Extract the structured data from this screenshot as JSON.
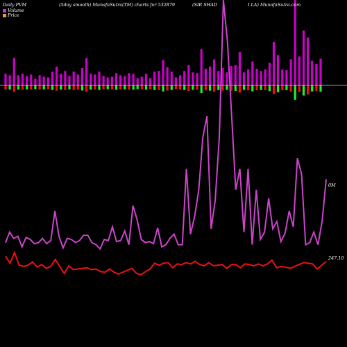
{
  "header": {
    "left": "Daily PVM",
    "mid": "(5day smooth) MunafaSutra(TM) charts for 532879",
    "right1": "(SIR SHAD",
    "right2": "I LA) MunafaSutra.com"
  },
  "legend": [
    {
      "label": "Volume",
      "color": "#cc33cc"
    },
    {
      "label": "Price",
      "color": "#e8a020"
    }
  ],
  "end_labels": {
    "volume": "0M",
    "price": "247.10"
  },
  "colors": {
    "background": "#000000",
    "volume_bar": "#cc00cc",
    "down": "#ee1111",
    "up": "#22ee22",
    "volume_line": "#cc44cc",
    "price_line": "#ee1111",
    "baseline": "#cccccc"
  },
  "chart_data": {
    "type": "bar+line",
    "volume_bar_height_index": [
      -1.6,
      -1.4,
      -3.8,
      -1.4,
      -1.6,
      -1.3,
      -1.5,
      -0.9,
      -1.4,
      -1.2,
      -1.1,
      -1.9,
      -2.6,
      -1.6,
      -2.0,
      -1.3,
      -1.9,
      -1.5,
      -2.4,
      -3.8,
      -1.6,
      -1.5,
      -1.9,
      -1.3,
      -1.1,
      -1.2,
      -1.7,
      -1.4,
      -1.3,
      -1.7,
      -1.6,
      -1.0,
      -1.2,
      -1.6,
      -1.0,
      -1.9,
      -2.0,
      -3.5,
      -2.5,
      -1.9,
      -1.1,
      -1.4,
      -2.0,
      -2.8,
      -1.8,
      -1.7,
      -5.0,
      -2.3,
      -2.6,
      -3.6,
      -2.0,
      -2.4,
      -1.8,
      -2.7,
      -2.8,
      -4.6,
      -1.8,
      -2.2,
      -3.3,
      -2.3,
      -2.0,
      -2.2,
      -3.1,
      -6.0,
      -4.2,
      -2.2,
      -2.1,
      -3.6,
      -12.0,
      -4.0,
      -7.6,
      -6.6,
      -3.4,
      -3.0,
      -3.7
    ],
    "volume_bar_type": [
      "red",
      "green",
      "red",
      "green",
      "red",
      "green",
      "red",
      "green",
      "red",
      "green",
      "red",
      "green",
      "red",
      "green",
      "red",
      "green",
      "red",
      "red",
      "green",
      "red",
      "green",
      "red",
      "green",
      "red",
      "green",
      "red",
      "green",
      "red",
      "green",
      "red",
      "green",
      "green",
      "red",
      "green",
      "red",
      "green",
      "red",
      "green",
      "red",
      "green",
      "red",
      "red",
      "green",
      "red",
      "green",
      "red",
      "green",
      "red",
      "green",
      "red",
      "green",
      "red",
      "green",
      "red",
      "green",
      "red",
      "green",
      "red",
      "green",
      "red",
      "green",
      "red",
      "green",
      "red",
      "green",
      "red",
      "green",
      "red",
      "green",
      "red",
      "green",
      "red",
      "green",
      "red",
      "green"
    ],
    "volume_line": [
      2.0,
      3.0,
      2.4,
      2.6,
      1.6,
      2.5,
      2.3,
      1.9,
      2.0,
      2.4,
      1.9,
      2.2,
      5.0,
      2.6,
      1.5,
      2.4,
      2.3,
      2.0,
      2.2,
      2.7,
      2.7,
      2.0,
      1.8,
      1.4,
      2.3,
      2.2,
      3.5,
      2.1,
      2.2,
      3.1,
      1.8,
      5.5,
      4.2,
      2.3,
      2.0,
      2.1,
      1.9,
      3.4,
      1.6,
      1.8,
      2.4,
      2.8,
      1.8,
      1.8,
      9.0,
      2.8,
      4.5,
      7.0,
      12.0,
      14.0,
      3.3,
      6.0,
      12.0,
      25.0,
      21.0,
      14.0,
      7.0,
      9.0,
      3.0,
      9.0,
      1.8,
      7.0,
      2.3,
      3.0,
      6.2,
      3.3,
      4.0,
      2.1,
      2.9,
      5.0,
      3.5,
      10.0,
      8.5,
      1.8,
      2.0,
      3.0,
      1.8,
      4.0,
      8.0
    ],
    "price_line": [
      247.9,
      246.8,
      248.5,
      246.5,
      246.3,
      246.5,
      247.0,
      246.2,
      246.6,
      246.0,
      246.3,
      247.4,
      246.3,
      245.2,
      246.4,
      245.8,
      245.9,
      246.0,
      246.1,
      245.8,
      245.9,
      245.5,
      245.4,
      245.9,
      245.4,
      245.1,
      245.4,
      245.7,
      246.0,
      245.2,
      245.0,
      245.5,
      245.9,
      246.8,
      246.5,
      246.8,
      246.9,
      246.1,
      246.7,
      246.6,
      246.9,
      246.7,
      247.1,
      246.6,
      246.4,
      246.9,
      246.4,
      246.5,
      246.6,
      246.0,
      246.6,
      246.6,
      246.1,
      246.7,
      246.6,
      246.4,
      246.7,
      246.4,
      246.7,
      247.3,
      246.1,
      246.3,
      246.2,
      246.0,
      246.3,
      246.6,
      246.9,
      246.8,
      246.7,
      245.9,
      246.5,
      247.1
    ]
  }
}
